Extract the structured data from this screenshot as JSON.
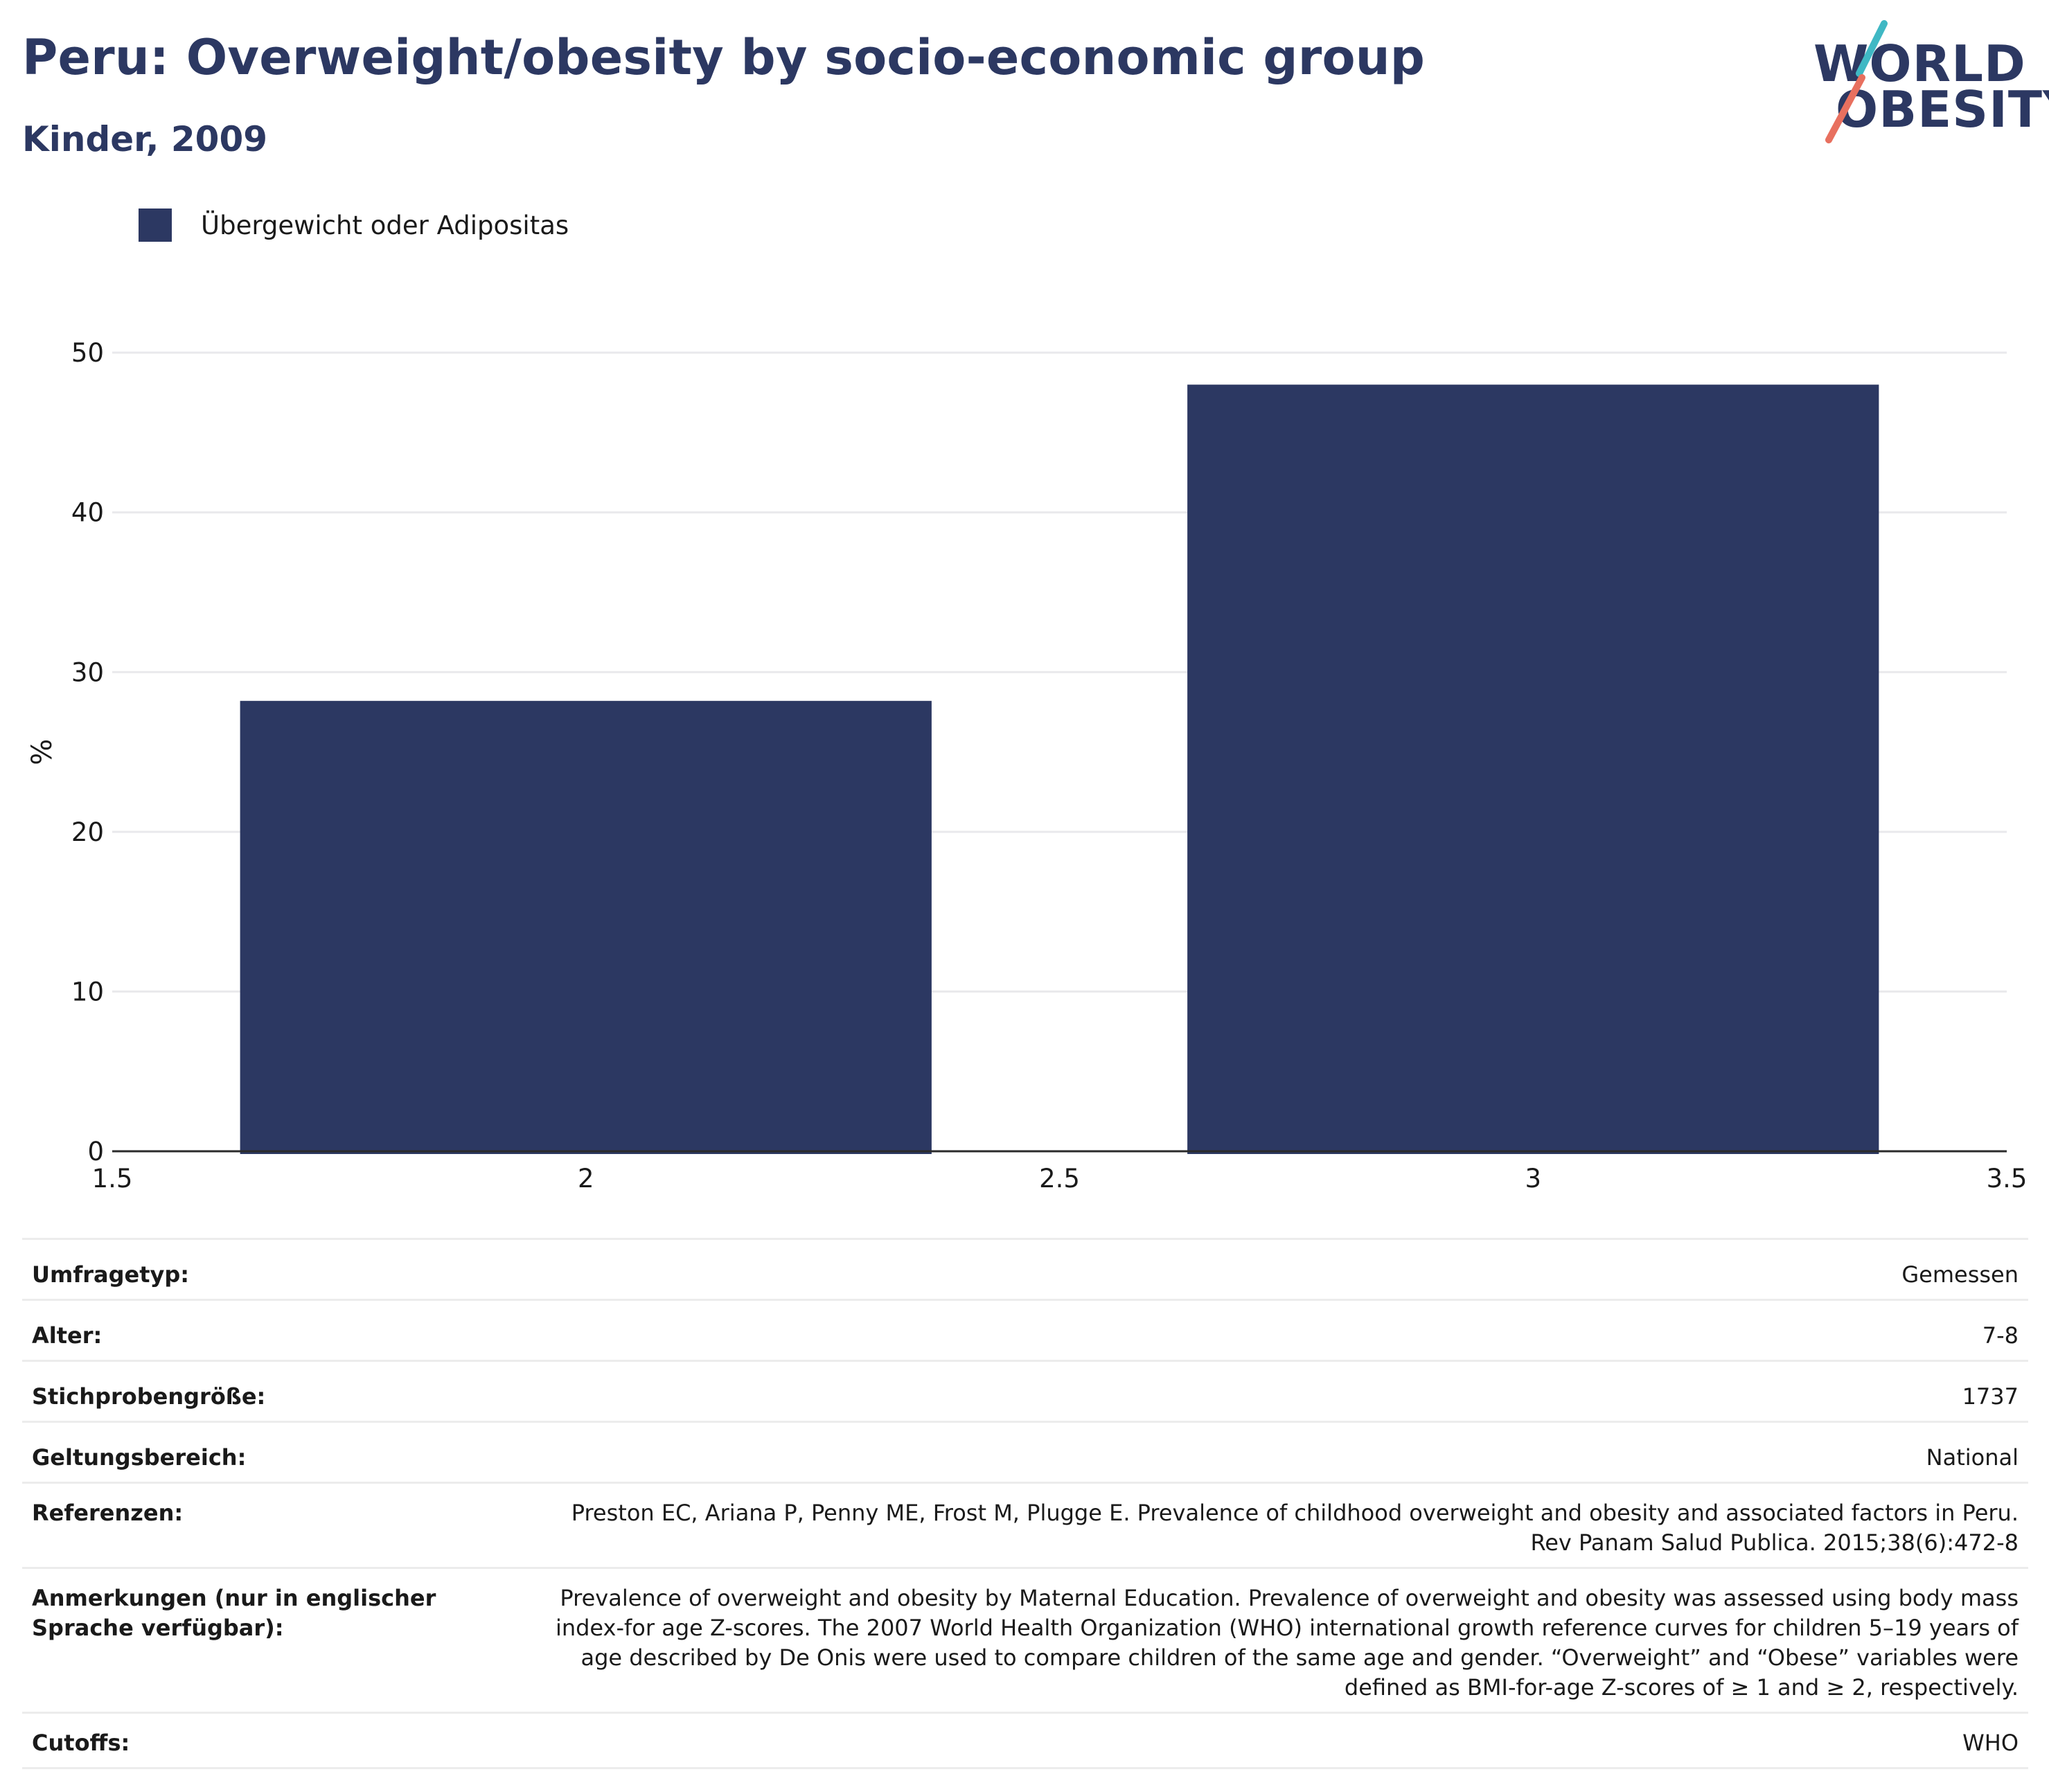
{
  "header": {
    "title": "Peru: Overweight/obesity by socio-economic group",
    "subtitle": "Kinder, 2009"
  },
  "logo": {
    "line1": "WORLD",
    "line2": "OBESITY",
    "accent_teal": "#3fb8c4",
    "accent_coral": "#e8705f"
  },
  "legend": {
    "label": "Übergewicht oder Adipositas",
    "color": "#2c3862"
  },
  "chart_data": {
    "type": "bar",
    "x": [
      2,
      3
    ],
    "values": [
      28.2,
      48.0
    ],
    "bar_width": 0.73,
    "xlim": [
      1.5,
      3.5
    ],
    "ylim": [
      0,
      53
    ],
    "xticks": [
      1.5,
      2,
      2.5,
      3,
      3.5
    ],
    "xtick_labels": [
      "1.5",
      "2",
      "2.5",
      "3",
      "3.5"
    ],
    "yticks": [
      0,
      10,
      20,
      30,
      40,
      50
    ],
    "ytick_labels": [
      "0",
      "10",
      "20",
      "30",
      "40",
      "50"
    ],
    "xlabel": "",
    "ylabel": "%",
    "grid": true,
    "series": [
      {
        "name": "Übergewicht oder Adipositas",
        "color": "#2c3862",
        "values": [
          28.2,
          48.0
        ]
      }
    ]
  },
  "meta": {
    "rows": [
      {
        "key": "Umfragetyp:",
        "value": "Gemessen"
      },
      {
        "key": "Alter:",
        "value": "7-8"
      },
      {
        "key": "Stichprobengröße:",
        "value": "1737"
      },
      {
        "key": "Geltungsbereich:",
        "value": "National"
      },
      {
        "key": "Referenzen:",
        "value": "Preston EC, Ariana P, Penny ME, Frost M, Plugge E. Prevalence of childhood overweight and obesity and associated factors in Peru. Rev Panam Salud Publica. 2015;38(6):472-8"
      },
      {
        "key": "Anmerkungen (nur in englischer Sprache verfügbar):",
        "value": "Prevalence of overweight and obesity by Maternal Education. Prevalence of overweight and obesity was assessed using body mass index-for age Z-scores. The 2007 World Health Organization (WHO) international growth reference curves for children 5–19 years of age described by De Onis were used to compare children of the same age and gender. “Overweight” and “Obese” variables were defined as BMI-for-age Z-scores of ≥ 1 and ≥ 2, respectively."
      },
      {
        "key": "Cutoffs:",
        "value": "WHO"
      }
    ]
  }
}
